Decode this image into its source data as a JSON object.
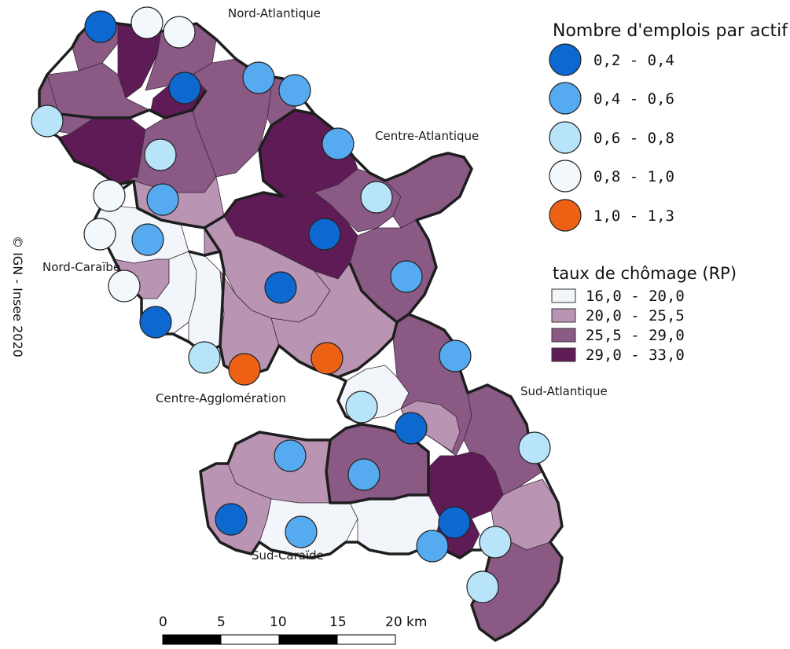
{
  "credit": "© IGN - Insee 2020",
  "regions": [
    {
      "label": "Nord-Atlantique"
    },
    {
      "label": "Centre-Atlantique"
    },
    {
      "label": "Nord-Caraïbe"
    },
    {
      "label": "Centre-Agglomération"
    },
    {
      "label": "Sud-Atlantique"
    },
    {
      "label": "Sud-Caraïde"
    }
  ],
  "legend_emplois": {
    "title": "Nombre d'emplois par actif",
    "items": [
      {
        "label": "0,2 - 0,4",
        "color": "#0d68cf"
      },
      {
        "label": "0,4 - 0,6",
        "color": "#56aaf0"
      },
      {
        "label": "0,6 - 0,8",
        "color": "#b8e4fa"
      },
      {
        "label": "0,8 - 1,0",
        "color": "#f3f8fc"
      },
      {
        "label": "1,0 - 1,3",
        "color": "#ed6114"
      }
    ]
  },
  "legend_chomage": {
    "title": "taux de chômage (RP)",
    "items": [
      {
        "label": "16,0 - 20,0",
        "color": "#f2f6fa"
      },
      {
        "label": "20,0 - 25,5",
        "color": "#b995b3"
      },
      {
        "label": "25,5 - 29,0",
        "color": "#8a5a85"
      },
      {
        "label": "29,0 - 33,0",
        "color": "#5e1b55"
      }
    ]
  },
  "scalebar": {
    "ticks": [
      "0",
      "5",
      "10",
      "15",
      "20 km"
    ]
  }
}
